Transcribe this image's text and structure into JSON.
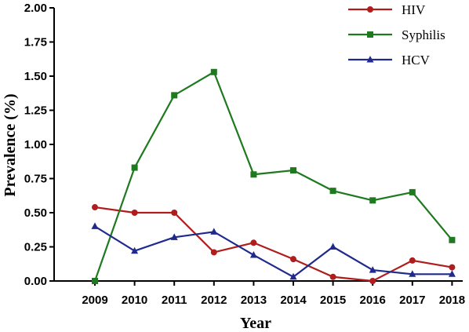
{
  "chart_data": {
    "type": "line",
    "title": "",
    "xlabel": "Year",
    "ylabel": "Prevalence (%)",
    "categories": [
      "2009",
      "2010",
      "2011",
      "2012",
      "2013",
      "2014",
      "2015",
      "2016",
      "2017",
      "2018"
    ],
    "y_ticks": [
      "0.00",
      "0.25",
      "0.50",
      "0.75",
      "1.00",
      "1.25",
      "1.50",
      "1.75",
      "2.00"
    ],
    "ylim": [
      0,
      2
    ],
    "grid": false,
    "legend_position": "top-right",
    "series": [
      {
        "name": "HIV",
        "color": "#b01d1d",
        "marker": "circle",
        "values": [
          0.54,
          0.5,
          0.5,
          0.21,
          0.28,
          0.16,
          0.03,
          0.0,
          0.15,
          0.1
        ]
      },
      {
        "name": "Syphilis",
        "color": "#1f7a1f",
        "marker": "square",
        "values": [
          0.0,
          0.83,
          1.36,
          1.53,
          0.78,
          0.81,
          0.66,
          0.59,
          0.65,
          0.3
        ]
      },
      {
        "name": "HCV",
        "color": "#1f2a8c",
        "marker": "triangle",
        "values": [
          0.4,
          0.22,
          0.32,
          0.36,
          0.19,
          0.03,
          0.25,
          0.08,
          0.05,
          0.05
        ]
      }
    ]
  }
}
